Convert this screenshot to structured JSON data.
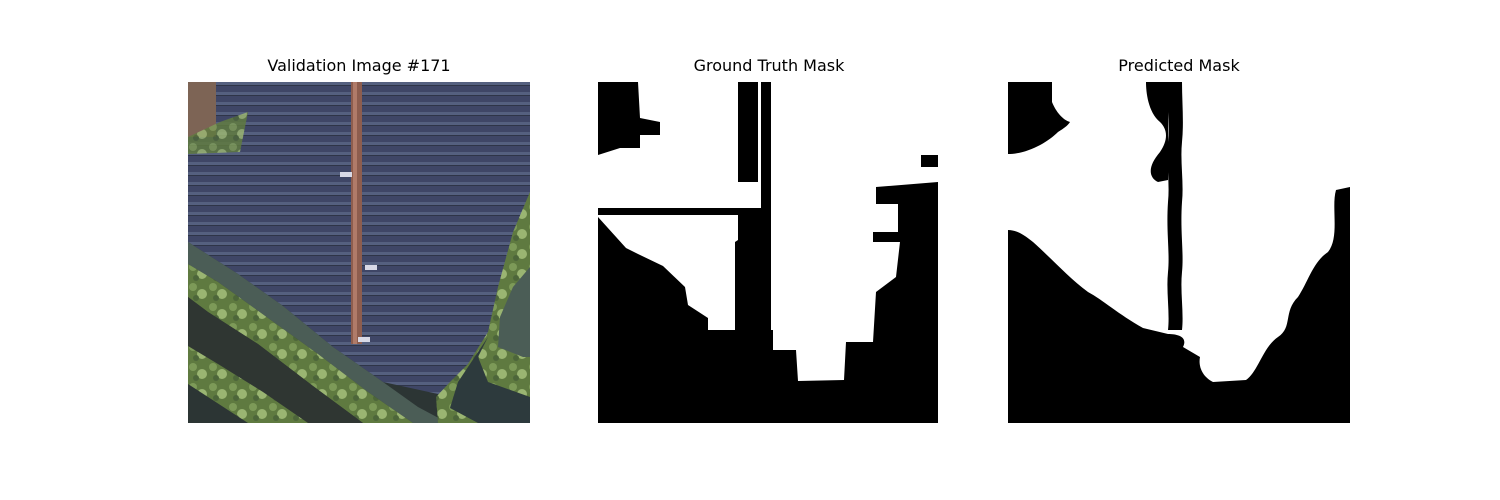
{
  "panels": [
    {
      "title": "Validation Image #171",
      "kind": "aerial-photo",
      "content": "satellite view of solar panel field"
    },
    {
      "title": "Ground Truth Mask",
      "kind": "binary-mask"
    },
    {
      "title": "Predicted Mask",
      "kind": "binary-mask"
    }
  ],
  "colors": {
    "background": "#ffffff",
    "mask_foreground": "#ffffff",
    "mask_background": "#000000",
    "panel_dark": "#40466a",
    "vegetation": "#6e8a4a",
    "water": "#4b5d56",
    "road": "#8d5d4e"
  }
}
